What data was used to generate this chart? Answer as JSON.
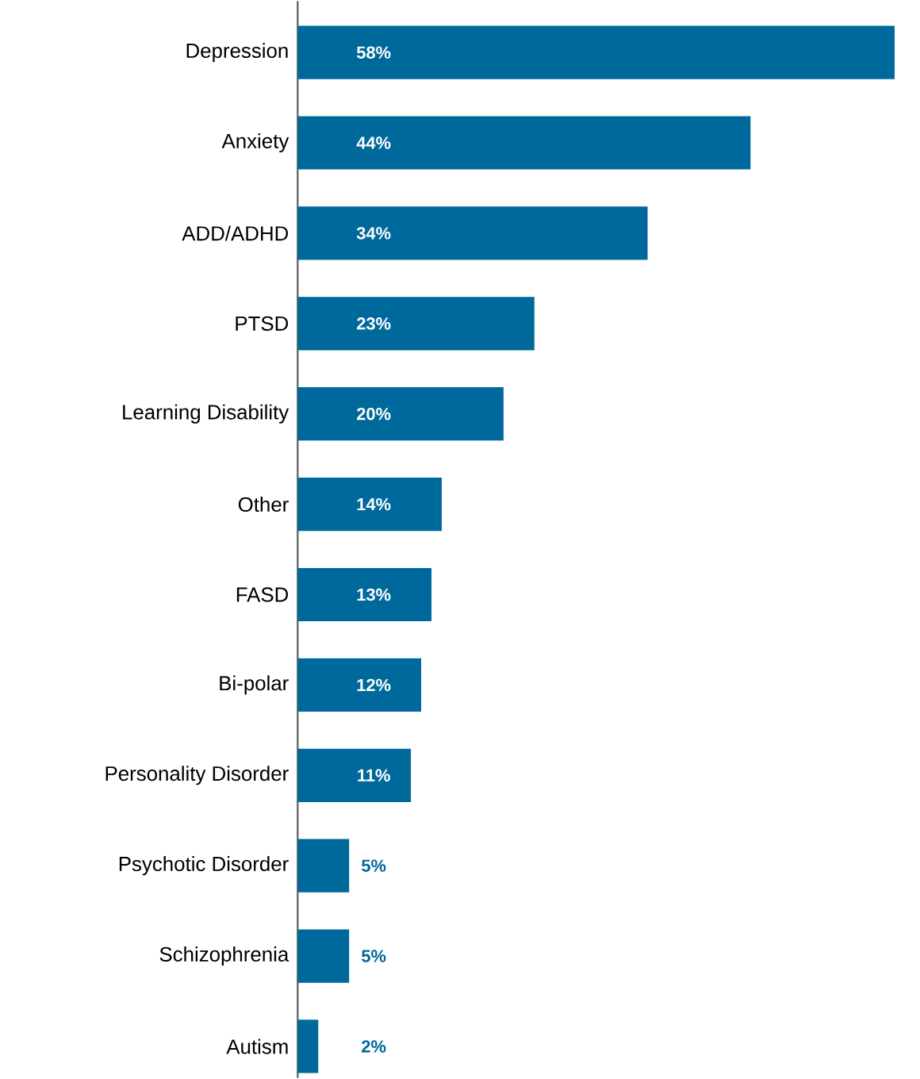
{
  "chart_data": {
    "type": "bar",
    "orientation": "horizontal",
    "color": "#00699b",
    "categories": [
      "Depression",
      "Anxiety",
      "ADD/ADHD",
      "PTSD",
      "Learning Disability",
      "Other",
      "FASD",
      "Bi-polar",
      "Personality Disorder",
      "Psychotic Disorder",
      "Schizophrenia",
      "Autism"
    ],
    "values": [
      58,
      44,
      34,
      23,
      20,
      14,
      13,
      12,
      11,
      5,
      5,
      2
    ],
    "value_labels": [
      "58%",
      "44%",
      "34%",
      "23%",
      "20%",
      "14%",
      "13%",
      "12%",
      "11%",
      "5%",
      "5%",
      "2%"
    ],
    "xlim": [
      0,
      58
    ],
    "tick_labels": "y"
  }
}
